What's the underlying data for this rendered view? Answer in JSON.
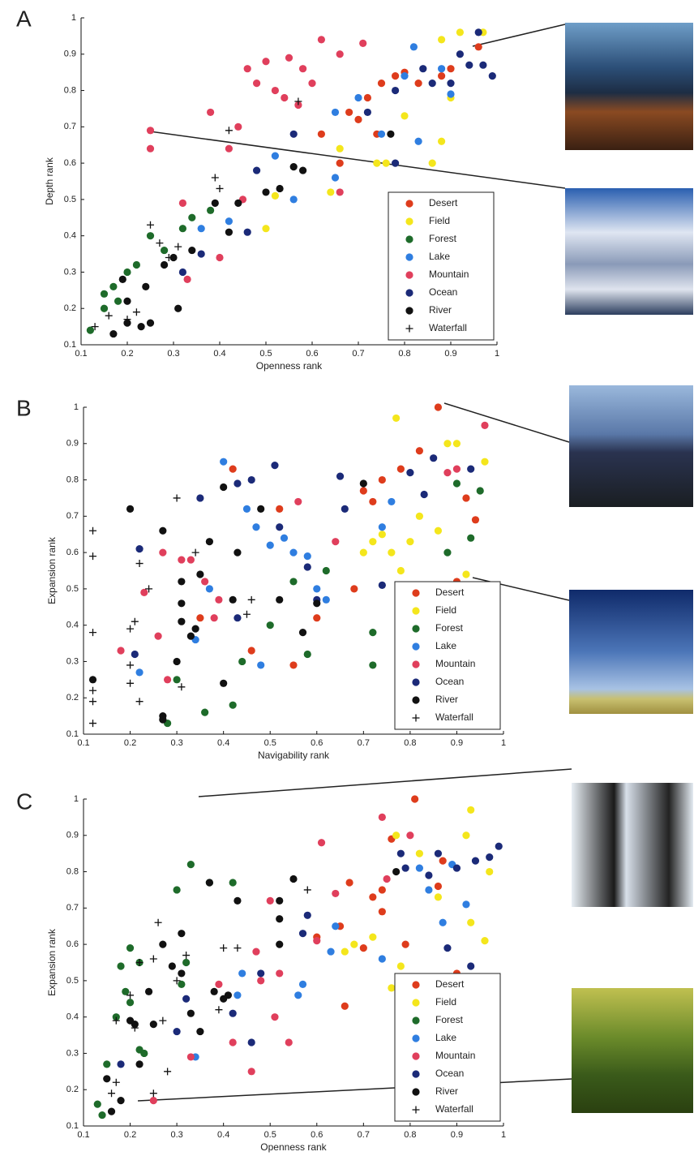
{
  "chart_data": [
    {
      "type": "scatter",
      "panel": "A",
      "xlabel": "Openness rank",
      "ylabel": "Depth rank",
      "xlim": [
        0.1,
        1
      ],
      "ylim": [
        0.1,
        1
      ],
      "xticks": [
        0.1,
        0.2,
        0.3,
        0.4,
        0.5,
        0.6,
        0.7,
        0.8,
        0.9,
        1
      ],
      "yticks": [
        0.1,
        0.2,
        0.3,
        0.4,
        0.5,
        0.6,
        0.7,
        0.8,
        0.9,
        1
      ],
      "legend": "lower right",
      "series": [
        {
          "name": "Desert",
          "color": "#de3c1c",
          "marker": "circle",
          "x": [
            0.96,
            0.78,
            0.8,
            0.75,
            0.72,
            0.7,
            0.74,
            0.66,
            0.88,
            0.83,
            0.9,
            0.62,
            0.68
          ],
          "values": [
            0.92,
            0.84,
            0.85,
            0.82,
            0.78,
            0.72,
            0.68,
            0.6,
            0.84,
            0.82,
            0.86,
            0.68,
            0.74
          ]
        },
        {
          "name": "Field",
          "color": "#f4e61c",
          "marker": "circle",
          "x": [
            0.92,
            0.88,
            0.97,
            0.8,
            0.74,
            0.66,
            0.64,
            0.86,
            0.88,
            0.9,
            0.5,
            0.76,
            0.52
          ],
          "values": [
            0.96,
            0.94,
            0.96,
            0.73,
            0.6,
            0.64,
            0.52,
            0.6,
            0.66,
            0.78,
            0.42,
            0.6,
            0.51
          ]
        },
        {
          "name": "Forest",
          "color": "#1e6b2a",
          "marker": "circle",
          "x": [
            0.12,
            0.15,
            0.17,
            0.2,
            0.22,
            0.25,
            0.28,
            0.32,
            0.34,
            0.38,
            0.18,
            0.15
          ],
          "values": [
            0.14,
            0.2,
            0.26,
            0.3,
            0.32,
            0.4,
            0.36,
            0.42,
            0.45,
            0.47,
            0.22,
            0.24
          ]
        },
        {
          "name": "Lake",
          "color": "#2f7ee0",
          "marker": "circle",
          "x": [
            0.65,
            0.7,
            0.82,
            0.88,
            0.83,
            0.75,
            0.56,
            0.52,
            0.36,
            0.42,
            0.9,
            0.8,
            0.65
          ],
          "values": [
            0.74,
            0.78,
            0.92,
            0.86,
            0.66,
            0.68,
            0.5,
            0.62,
            0.42,
            0.44,
            0.79,
            0.84,
            0.56
          ]
        },
        {
          "name": "Mountain",
          "color": "#e03f5c",
          "marker": "circle",
          "x": [
            0.25,
            0.25,
            0.38,
            0.44,
            0.42,
            0.46,
            0.5,
            0.55,
            0.58,
            0.62,
            0.71,
            0.66,
            0.52,
            0.54,
            0.57,
            0.6,
            0.48,
            0.66,
            0.45,
            0.32,
            0.4,
            0.33
          ],
          "values": [
            0.69,
            0.64,
            0.74,
            0.7,
            0.64,
            0.86,
            0.88,
            0.89,
            0.86,
            0.94,
            0.93,
            0.9,
            0.8,
            0.78,
            0.76,
            0.82,
            0.82,
            0.52,
            0.5,
            0.49,
            0.34,
            0.28
          ]
        },
        {
          "name": "Ocean",
          "color": "#1b2a78",
          "marker": "circle",
          "x": [
            0.96,
            0.94,
            0.92,
            0.97,
            0.99,
            0.9,
            0.86,
            0.84,
            0.78,
            0.72,
            0.78,
            0.56,
            0.48,
            0.46,
            0.36,
            0.32
          ],
          "values": [
            0.96,
            0.87,
            0.9,
            0.87,
            0.84,
            0.82,
            0.82,
            0.86,
            0.8,
            0.74,
            0.6,
            0.68,
            0.58,
            0.41,
            0.35,
            0.3
          ]
        },
        {
          "name": "River",
          "color": "#111111",
          "marker": "circle",
          "x": [
            0.17,
            0.2,
            0.23,
            0.25,
            0.31,
            0.19,
            0.24,
            0.28,
            0.3,
            0.34,
            0.39,
            0.42,
            0.44,
            0.5,
            0.53,
            0.56,
            0.58,
            0.77,
            0.2
          ],
          "values": [
            0.13,
            0.16,
            0.15,
            0.16,
            0.2,
            0.28,
            0.26,
            0.32,
            0.34,
            0.36,
            0.49,
            0.41,
            0.49,
            0.52,
            0.53,
            0.59,
            0.58,
            0.68,
            0.22
          ]
        },
        {
          "name": "Waterfall",
          "color": "#111111",
          "marker": "plus",
          "x": [
            0.16,
            0.2,
            0.22,
            0.25,
            0.27,
            0.29,
            0.31,
            0.39,
            0.4,
            0.42,
            0.57,
            0.13
          ],
          "values": [
            0.18,
            0.17,
            0.19,
            0.43,
            0.38,
            0.34,
            0.37,
            0.56,
            0.53,
            0.69,
            0.77,
            0.15
          ]
        }
      ]
    },
    {
      "type": "scatter",
      "panel": "B",
      "xlabel": "Navigability rank",
      "ylabel": "Expansion rank",
      "xlim": [
        0.1,
        1
      ],
      "ylim": [
        0.1,
        1
      ],
      "xticks": [
        0.1,
        0.2,
        0.3,
        0.4,
        0.5,
        0.6,
        0.7,
        0.8,
        0.9,
        1
      ],
      "yticks": [
        0.1,
        0.2,
        0.3,
        0.4,
        0.5,
        0.6,
        0.7,
        0.8,
        0.9,
        1
      ],
      "legend": "lower right",
      "series": [
        {
          "name": "Desert",
          "color": "#de3c1c",
          "marker": "circle",
          "x": [
            0.86,
            0.82,
            0.74,
            0.7,
            0.72,
            0.78,
            0.92,
            0.94,
            0.9,
            0.68,
            0.6,
            0.55,
            0.52,
            0.46,
            0.42,
            0.35
          ],
          "values": [
            1.0,
            0.88,
            0.8,
            0.77,
            0.74,
            0.83,
            0.75,
            0.69,
            0.52,
            0.5,
            0.42,
            0.29,
            0.72,
            0.33,
            0.83,
            0.42
          ]
        },
        {
          "name": "Field",
          "color": "#f4e61c",
          "marker": "circle",
          "x": [
            0.77,
            0.88,
            0.9,
            0.96,
            0.82,
            0.76,
            0.74,
            0.8,
            0.86,
            0.92,
            0.78,
            0.72,
            0.7
          ],
          "values": [
            0.97,
            0.9,
            0.9,
            0.85,
            0.7,
            0.6,
            0.65,
            0.63,
            0.66,
            0.54,
            0.55,
            0.63,
            0.6
          ]
        },
        {
          "name": "Forest",
          "color": "#1e6b2a",
          "marker": "circle",
          "x": [
            0.28,
            0.36,
            0.42,
            0.44,
            0.5,
            0.58,
            0.55,
            0.62,
            0.72,
            0.72,
            0.88,
            0.93,
            0.95,
            0.9,
            0.3
          ],
          "values": [
            0.13,
            0.16,
            0.18,
            0.3,
            0.4,
            0.32,
            0.52,
            0.55,
            0.29,
            0.38,
            0.6,
            0.64,
            0.77,
            0.79,
            0.25
          ]
        },
        {
          "name": "Lake",
          "color": "#2f7ee0",
          "marker": "circle",
          "x": [
            0.4,
            0.45,
            0.47,
            0.5,
            0.53,
            0.55,
            0.58,
            0.6,
            0.62,
            0.48,
            0.34,
            0.22,
            0.74,
            0.76,
            0.37
          ],
          "values": [
            0.85,
            0.72,
            0.67,
            0.62,
            0.64,
            0.6,
            0.59,
            0.5,
            0.47,
            0.29,
            0.36,
            0.27,
            0.67,
            0.74,
            0.5
          ]
        },
        {
          "name": "Mountain",
          "color": "#e03f5c",
          "marker": "circle",
          "x": [
            0.96,
            0.18,
            0.23,
            0.27,
            0.31,
            0.33,
            0.36,
            0.38,
            0.26,
            0.28,
            0.39,
            0.56,
            0.64,
            0.88,
            0.9
          ],
          "values": [
            0.95,
            0.33,
            0.49,
            0.6,
            0.58,
            0.58,
            0.52,
            0.42,
            0.37,
            0.25,
            0.47,
            0.74,
            0.63,
            0.82,
            0.83
          ]
        },
        {
          "name": "Ocean",
          "color": "#1b2a78",
          "marker": "circle",
          "x": [
            0.51,
            0.46,
            0.43,
            0.35,
            0.22,
            0.52,
            0.58,
            0.65,
            0.66,
            0.74,
            0.8,
            0.85,
            0.93,
            0.83,
            0.21,
            0.43,
            0.6
          ],
          "values": [
            0.84,
            0.8,
            0.79,
            0.75,
            0.61,
            0.67,
            0.56,
            0.81,
            0.72,
            0.51,
            0.82,
            0.86,
            0.83,
            0.76,
            0.32,
            0.42,
            0.47
          ]
        },
        {
          "name": "River",
          "color": "#111111",
          "marker": "circle",
          "x": [
            0.12,
            0.2,
            0.27,
            0.27,
            0.27,
            0.31,
            0.31,
            0.31,
            0.33,
            0.35,
            0.37,
            0.4,
            0.42,
            0.43,
            0.48,
            0.4,
            0.52,
            0.57,
            0.6,
            0.7,
            0.34,
            0.3
          ],
          "values": [
            0.25,
            0.72,
            0.66,
            0.15,
            0.14,
            0.52,
            0.46,
            0.41,
            0.37,
            0.54,
            0.63,
            0.78,
            0.47,
            0.6,
            0.72,
            0.24,
            0.47,
            0.38,
            0.46,
            0.79,
            0.39,
            0.3
          ]
        },
        {
          "name": "Waterfall",
          "color": "#111111",
          "marker": "plus",
          "x": [
            0.12,
            0.12,
            0.12,
            0.12,
            0.12,
            0.12,
            0.2,
            0.2,
            0.22,
            0.2,
            0.21,
            0.24,
            0.3,
            0.31,
            0.34,
            0.45,
            0.46,
            0.22
          ],
          "values": [
            0.66,
            0.59,
            0.38,
            0.22,
            0.19,
            0.13,
            0.29,
            0.24,
            0.57,
            0.39,
            0.41,
            0.5,
            0.75,
            0.23,
            0.6,
            0.43,
            0.47,
            0.19
          ]
        }
      ]
    },
    {
      "type": "scatter",
      "panel": "C",
      "xlabel": "Openness rank",
      "ylabel": "Expansion rank",
      "xlim": [
        0.1,
        1
      ],
      "ylim": [
        0.1,
        1
      ],
      "xticks": [
        0.1,
        0.2,
        0.3,
        0.4,
        0.5,
        0.6,
        0.7,
        0.8,
        0.9,
        1
      ],
      "yticks": [
        0.1,
        0.2,
        0.3,
        0.4,
        0.5,
        0.6,
        0.7,
        0.8,
        0.9,
        1
      ],
      "legend": "lower right",
      "series": [
        {
          "name": "Desert",
          "color": "#de3c1c",
          "marker": "circle",
          "x": [
            0.81,
            0.76,
            0.87,
            0.86,
            0.72,
            0.74,
            0.65,
            0.67,
            0.6,
            0.66,
            0.7,
            0.9,
            0.79,
            0.74
          ],
          "values": [
            1.0,
            0.89,
            0.83,
            0.76,
            0.73,
            0.69,
            0.65,
            0.77,
            0.62,
            0.43,
            0.59,
            0.52,
            0.6,
            0.75
          ]
        },
        {
          "name": "Field",
          "color": "#f4e61c",
          "marker": "circle",
          "x": [
            0.93,
            0.77,
            0.92,
            0.82,
            0.97,
            0.86,
            0.72,
            0.78,
            0.93,
            0.96,
            0.66,
            0.76,
            0.68
          ],
          "values": [
            0.97,
            0.9,
            0.9,
            0.85,
            0.8,
            0.73,
            0.62,
            0.54,
            0.66,
            0.61,
            0.58,
            0.48,
            0.6
          ]
        },
        {
          "name": "Forest",
          "color": "#1e6b2a",
          "marker": "circle",
          "x": [
            0.33,
            0.37,
            0.42,
            0.3,
            0.2,
            0.22,
            0.18,
            0.19,
            0.2,
            0.17,
            0.22,
            0.23,
            0.15,
            0.13,
            0.14,
            0.32,
            0.31
          ],
          "values": [
            0.82,
            0.77,
            0.77,
            0.75,
            0.59,
            0.55,
            0.54,
            0.47,
            0.44,
            0.4,
            0.31,
            0.3,
            0.27,
            0.16,
            0.13,
            0.55,
            0.49
          ]
        },
        {
          "name": "Lake",
          "color": "#2f7ee0",
          "marker": "circle",
          "x": [
            0.82,
            0.89,
            0.84,
            0.64,
            0.63,
            0.56,
            0.57,
            0.44,
            0.43,
            0.34,
            0.87,
            0.74,
            0.92
          ],
          "values": [
            0.81,
            0.82,
            0.75,
            0.65,
            0.58,
            0.46,
            0.49,
            0.52,
            0.46,
            0.29,
            0.66,
            0.56,
            0.71
          ]
        },
        {
          "name": "Mountain",
          "color": "#e03f5c",
          "marker": "circle",
          "x": [
            0.74,
            0.61,
            0.8,
            0.75,
            0.64,
            0.5,
            0.47,
            0.52,
            0.48,
            0.51,
            0.54,
            0.46,
            0.42,
            0.39,
            0.33,
            0.25,
            0.6
          ],
          "values": [
            0.95,
            0.88,
            0.9,
            0.78,
            0.74,
            0.72,
            0.58,
            0.52,
            0.5,
            0.4,
            0.33,
            0.25,
            0.33,
            0.49,
            0.29,
            0.17,
            0.61
          ]
        },
        {
          "name": "Ocean",
          "color": "#1b2a78",
          "marker": "circle",
          "x": [
            0.99,
            0.97,
            0.94,
            0.9,
            0.86,
            0.78,
            0.79,
            0.84,
            0.93,
            0.88,
            0.58,
            0.57,
            0.48,
            0.42,
            0.46,
            0.3,
            0.32,
            0.18
          ],
          "values": [
            0.87,
            0.84,
            0.83,
            0.81,
            0.85,
            0.85,
            0.81,
            0.79,
            0.54,
            0.59,
            0.68,
            0.63,
            0.52,
            0.41,
            0.33,
            0.36,
            0.45,
            0.27
          ]
        },
        {
          "name": "River",
          "color": "#111111",
          "marker": "circle",
          "x": [
            0.16,
            0.15,
            0.18,
            0.2,
            0.21,
            0.22,
            0.24,
            0.25,
            0.27,
            0.29,
            0.31,
            0.31,
            0.33,
            0.35,
            0.38,
            0.41,
            0.43,
            0.52,
            0.52,
            0.52,
            0.55,
            0.77,
            0.37,
            0.4
          ],
          "values": [
            0.14,
            0.23,
            0.17,
            0.39,
            0.38,
            0.27,
            0.47,
            0.38,
            0.6,
            0.54,
            0.52,
            0.63,
            0.41,
            0.36,
            0.47,
            0.46,
            0.72,
            0.72,
            0.67,
            0.6,
            0.78,
            0.8,
            0.77,
            0.45
          ]
        },
        {
          "name": "Waterfall",
          "color": "#111111",
          "marker": "plus",
          "x": [
            0.17,
            0.17,
            0.16,
            0.2,
            0.21,
            0.22,
            0.25,
            0.26,
            0.28,
            0.3,
            0.32,
            0.4,
            0.43,
            0.39,
            0.58,
            0.25,
            0.27
          ],
          "values": [
            0.39,
            0.22,
            0.19,
            0.46,
            0.37,
            0.55,
            0.56,
            0.66,
            0.25,
            0.5,
            0.57,
            0.59,
            0.59,
            0.42,
            0.75,
            0.19,
            0.39
          ]
        }
      ]
    }
  ]
}
